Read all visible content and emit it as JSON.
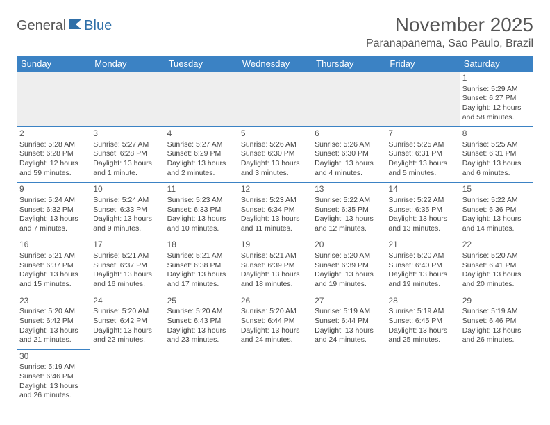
{
  "logo": {
    "part1": "General",
    "part2": "Blue"
  },
  "title": "November 2025",
  "location": "Paranapanema, Sao Paulo, Brazil",
  "colors": {
    "header_bg": "#3b82c4",
    "header_text": "#ffffff",
    "row_border": "#3b82c4",
    "blank_bg": "#eeeeee",
    "body_text": "#444444",
    "logo_gray": "#555555",
    "logo_blue": "#2f6fa8"
  },
  "weekdays": [
    "Sunday",
    "Monday",
    "Tuesday",
    "Wednesday",
    "Thursday",
    "Friday",
    "Saturday"
  ],
  "month": {
    "first_weekday": 6,
    "num_days": 30
  },
  "days": {
    "1": {
      "sunrise": "5:29 AM",
      "sunset": "6:27 PM",
      "daylight": "12 hours and 58 minutes."
    },
    "2": {
      "sunrise": "5:28 AM",
      "sunset": "6:28 PM",
      "daylight": "12 hours and 59 minutes."
    },
    "3": {
      "sunrise": "5:27 AM",
      "sunset": "6:28 PM",
      "daylight": "13 hours and 1 minute."
    },
    "4": {
      "sunrise": "5:27 AM",
      "sunset": "6:29 PM",
      "daylight": "13 hours and 2 minutes."
    },
    "5": {
      "sunrise": "5:26 AM",
      "sunset": "6:30 PM",
      "daylight": "13 hours and 3 minutes."
    },
    "6": {
      "sunrise": "5:26 AM",
      "sunset": "6:30 PM",
      "daylight": "13 hours and 4 minutes."
    },
    "7": {
      "sunrise": "5:25 AM",
      "sunset": "6:31 PM",
      "daylight": "13 hours and 5 minutes."
    },
    "8": {
      "sunrise": "5:25 AM",
      "sunset": "6:31 PM",
      "daylight": "13 hours and 6 minutes."
    },
    "9": {
      "sunrise": "5:24 AM",
      "sunset": "6:32 PM",
      "daylight": "13 hours and 7 minutes."
    },
    "10": {
      "sunrise": "5:24 AM",
      "sunset": "6:33 PM",
      "daylight": "13 hours and 9 minutes."
    },
    "11": {
      "sunrise": "5:23 AM",
      "sunset": "6:33 PM",
      "daylight": "13 hours and 10 minutes."
    },
    "12": {
      "sunrise": "5:23 AM",
      "sunset": "6:34 PM",
      "daylight": "13 hours and 11 minutes."
    },
    "13": {
      "sunrise": "5:22 AM",
      "sunset": "6:35 PM",
      "daylight": "13 hours and 12 minutes."
    },
    "14": {
      "sunrise": "5:22 AM",
      "sunset": "6:35 PM",
      "daylight": "13 hours and 13 minutes."
    },
    "15": {
      "sunrise": "5:22 AM",
      "sunset": "6:36 PM",
      "daylight": "13 hours and 14 minutes."
    },
    "16": {
      "sunrise": "5:21 AM",
      "sunset": "6:37 PM",
      "daylight": "13 hours and 15 minutes."
    },
    "17": {
      "sunrise": "5:21 AM",
      "sunset": "6:37 PM",
      "daylight": "13 hours and 16 minutes."
    },
    "18": {
      "sunrise": "5:21 AM",
      "sunset": "6:38 PM",
      "daylight": "13 hours and 17 minutes."
    },
    "19": {
      "sunrise": "5:21 AM",
      "sunset": "6:39 PM",
      "daylight": "13 hours and 18 minutes."
    },
    "20": {
      "sunrise": "5:20 AM",
      "sunset": "6:39 PM",
      "daylight": "13 hours and 19 minutes."
    },
    "21": {
      "sunrise": "5:20 AM",
      "sunset": "6:40 PM",
      "daylight": "13 hours and 19 minutes."
    },
    "22": {
      "sunrise": "5:20 AM",
      "sunset": "6:41 PM",
      "daylight": "13 hours and 20 minutes."
    },
    "23": {
      "sunrise": "5:20 AM",
      "sunset": "6:42 PM",
      "daylight": "13 hours and 21 minutes."
    },
    "24": {
      "sunrise": "5:20 AM",
      "sunset": "6:42 PM",
      "daylight": "13 hours and 22 minutes."
    },
    "25": {
      "sunrise": "5:20 AM",
      "sunset": "6:43 PM",
      "daylight": "13 hours and 23 minutes."
    },
    "26": {
      "sunrise": "5:20 AM",
      "sunset": "6:44 PM",
      "daylight": "13 hours and 24 minutes."
    },
    "27": {
      "sunrise": "5:19 AM",
      "sunset": "6:44 PM",
      "daylight": "13 hours and 24 minutes."
    },
    "28": {
      "sunrise": "5:19 AM",
      "sunset": "6:45 PM",
      "daylight": "13 hours and 25 minutes."
    },
    "29": {
      "sunrise": "5:19 AM",
      "sunset": "6:46 PM",
      "daylight": "13 hours and 26 minutes."
    },
    "30": {
      "sunrise": "5:19 AM",
      "sunset": "6:46 PM",
      "daylight": "13 hours and 26 minutes."
    }
  },
  "labels": {
    "sunrise_prefix": "Sunrise: ",
    "sunset_prefix": "Sunset: ",
    "daylight_prefix": "Daylight: "
  }
}
